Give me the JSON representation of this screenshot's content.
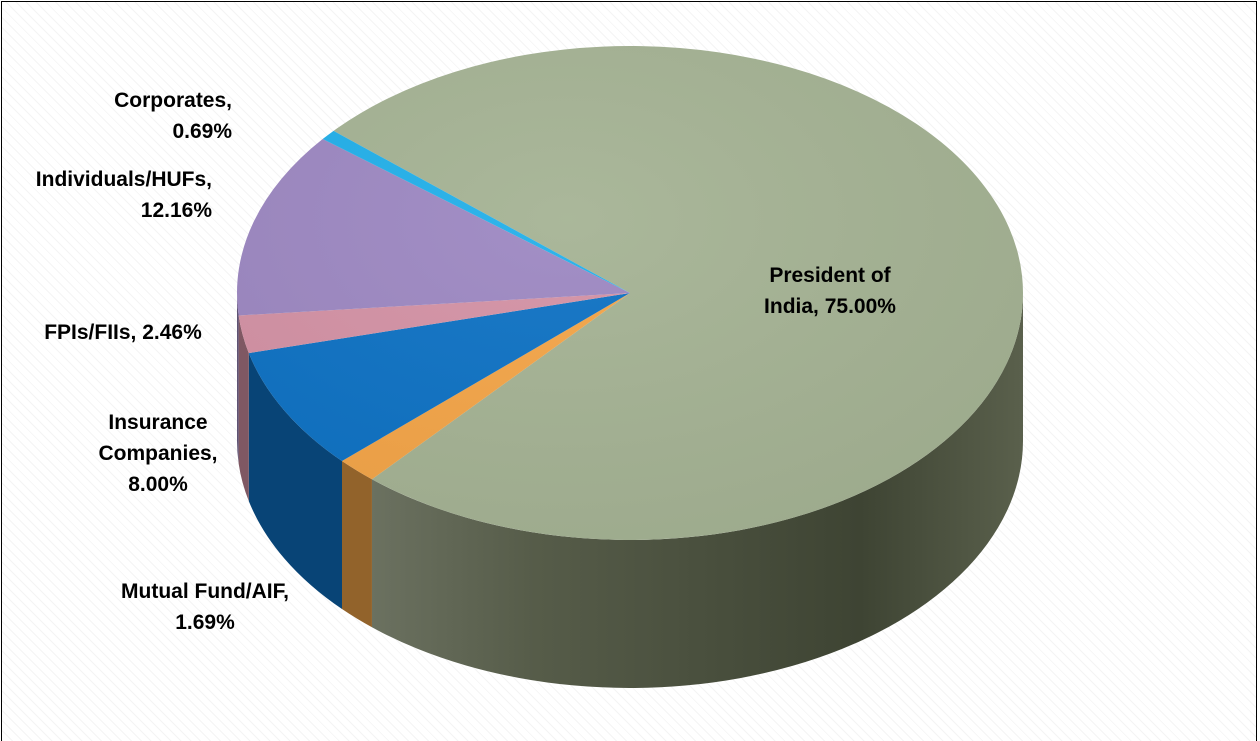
{
  "chart_data": {
    "type": "pie",
    "title": "",
    "slices": [
      {
        "label": "President of India",
        "value": 75.0,
        "label_text": "President of India, 75.00%",
        "color": "#a5b394"
      },
      {
        "label": "Mutual Fund/AIF",
        "value": 1.69,
        "label_text": "Mutual Fund/AIF, 1.69%",
        "color": "#f4a548"
      },
      {
        "label": "Insurance Companies",
        "value": 8.0,
        "label_text": "Insurance Companies, 8.00%",
        "color": "#0e72c4"
      },
      {
        "label": "FPIs/FIIs",
        "value": 2.46,
        "label_text": "FPIs/FIIs, 2.46%",
        "color": "#d492a5"
      },
      {
        "label": "Individuals/HUFs",
        "value": 12.16,
        "label_text": "Individuals/HUFs, 12.16%",
        "color": "#9d88c2"
      },
      {
        "label": "Corporates",
        "value": 0.69,
        "label_text": "Corporates, 0.69%",
        "color": "#22b0ea"
      }
    ],
    "style": "3d-pie",
    "legend": "none",
    "labels": "outside-with-percent"
  }
}
